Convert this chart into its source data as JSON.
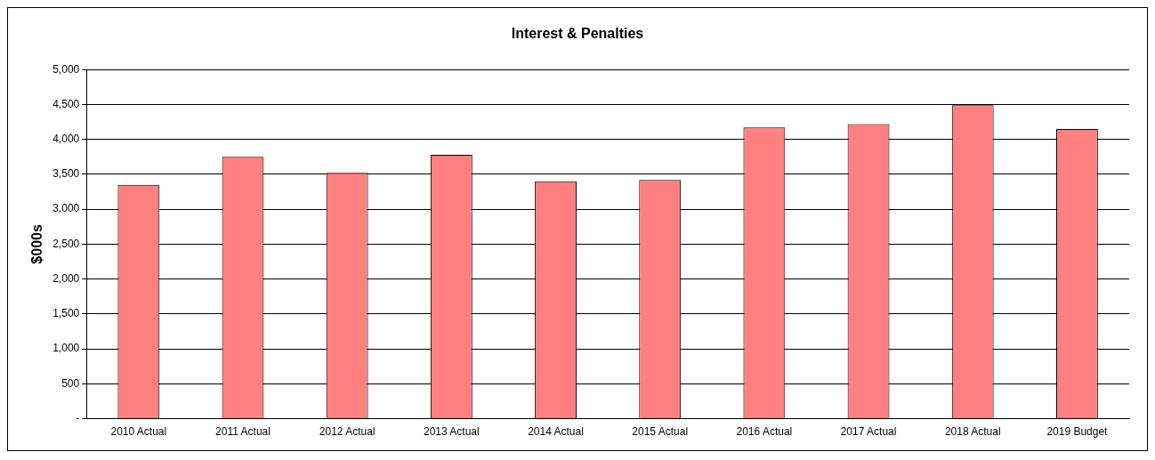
{
  "chart_data": {
    "type": "bar",
    "title": "Interest & Penalties",
    "ylabel": "$000s",
    "categories": [
      "2010 Actual",
      "2011 Actual",
      "2012 Actual",
      "2013 Actual",
      "2014 Actual",
      "2015 Actual",
      "2016 Actual",
      "2017 Actual",
      "2018 Actual",
      "2019 Budget"
    ],
    "values": [
      3350,
      3750,
      3520,
      3780,
      3400,
      3420,
      4170,
      4220,
      4490,
      4150
    ],
    "color": "#ff8080",
    "ylim": [
      0,
      5000
    ],
    "yticks": [
      {
        "value": 0,
        "label": "-"
      },
      {
        "value": 500,
        "label": "500"
      },
      {
        "value": 1000,
        "label": "1,000"
      },
      {
        "value": 1500,
        "label": "1,500"
      },
      {
        "value": 2000,
        "label": "2,000"
      },
      {
        "value": 2500,
        "label": "2,500"
      },
      {
        "value": 3000,
        "label": "3,000"
      },
      {
        "value": 3500,
        "label": "3,500"
      },
      {
        "value": 4000,
        "label": "4,000"
      },
      {
        "value": 4500,
        "label": "4,500"
      },
      {
        "value": 5000,
        "label": "5,000"
      }
    ],
    "grid": "y",
    "legend": false
  }
}
